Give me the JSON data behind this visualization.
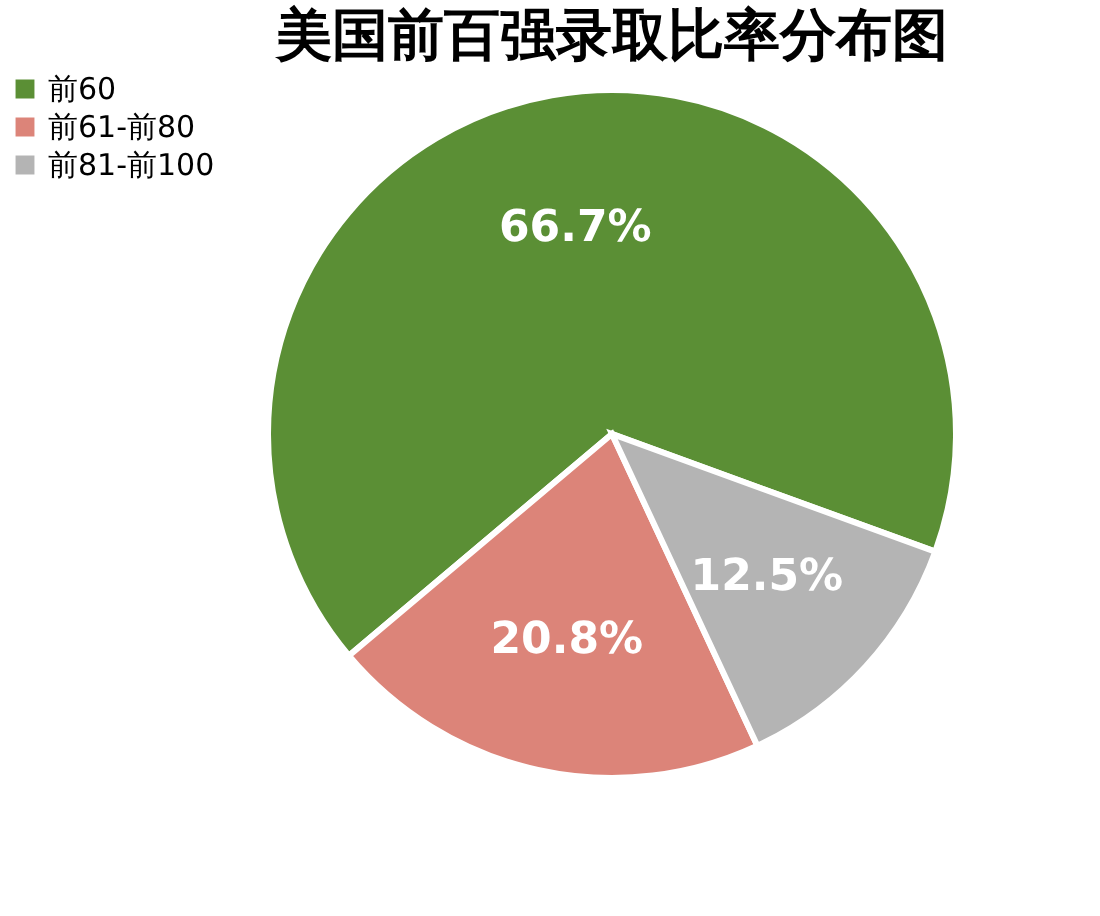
{
  "chart_data": {
    "type": "pie",
    "title": "美国前百强录取比率分布图",
    "categories": [
      "前60",
      "前61-前80",
      "前81-前100"
    ],
    "values": [
      66.7,
      20.8,
      12.5
    ],
    "colors": [
      "#5b8f35",
      "#dc8479",
      "#b4b4b4"
    ],
    "value_labels": [
      "66.7%",
      "20.8%",
      "12.5%"
    ],
    "legend": "left"
  }
}
